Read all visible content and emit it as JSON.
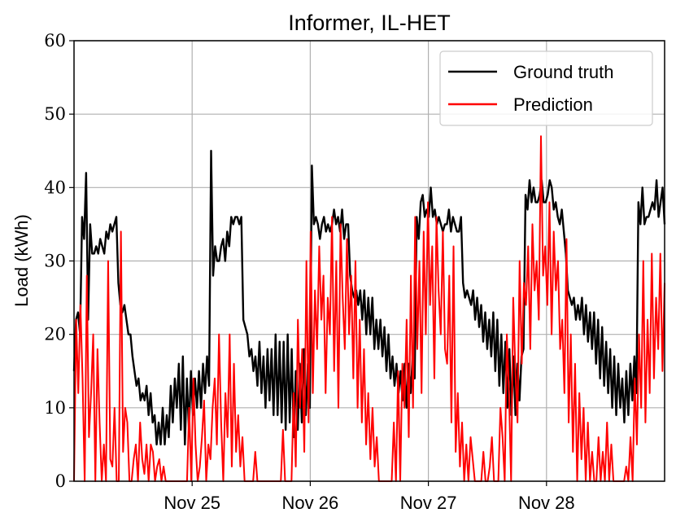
{
  "chart_data": {
    "type": "line",
    "title": "Informer, IL-HET",
    "xlabel": "",
    "ylabel": "Load (kWh)",
    "ylim": [
      0,
      60
    ],
    "yticks": [
      "0",
      "10",
      "20",
      "30",
      "40",
      "50",
      "60"
    ],
    "xticks": [
      "Nov 25",
      "Nov 26",
      "Nov 27",
      "Nov 28"
    ],
    "x_range_days": [
      "2023-11-24",
      "2023-11-29"
    ],
    "grid": true,
    "legend_position": "top-right",
    "series": [
      {
        "name": "Ground truth",
        "color": "#000000",
        "values": [
          15,
          22,
          23,
          20,
          36,
          33,
          42,
          22,
          35,
          31,
          31,
          32,
          31,
          33,
          32,
          31,
          34,
          33,
          35,
          34,
          35,
          36,
          27,
          24,
          23,
          24,
          22,
          20,
          20,
          17,
          15,
          13,
          14,
          11,
          12,
          11,
          13,
          9,
          12,
          8,
          9,
          5,
          8,
          5,
          10,
          5,
          9,
          6,
          13,
          8,
          14,
          10,
          16,
          7,
          17,
          5,
          14,
          7,
          15,
          9,
          14,
          10,
          15,
          10,
          16,
          12,
          17,
          13,
          45,
          28,
          32,
          30,
          30,
          32,
          33,
          30,
          34,
          32,
          36,
          35,
          36,
          36,
          35,
          36,
          22,
          21,
          20,
          17,
          18,
          15,
          17,
          13,
          19,
          12,
          17,
          10,
          18,
          11,
          18,
          9,
          20,
          9,
          19,
          8,
          19,
          7,
          20,
          8,
          18,
          6,
          15,
          7,
          16,
          8,
          18,
          9,
          16,
          10,
          43,
          35,
          36,
          35,
          33,
          35,
          36,
          34,
          35,
          34,
          35,
          37,
          35,
          36,
          34,
          37,
          33,
          35,
          35,
          28,
          26,
          25,
          26,
          24,
          26,
          22,
          26,
          20,
          25,
          20,
          25,
          18,
          22,
          18,
          22,
          17,
          21,
          15,
          20,
          14,
          17,
          13,
          16,
          12,
          15,
          11,
          16,
          10,
          16,
          12,
          17,
          14,
          36,
          33,
          38,
          39,
          36,
          37,
          36,
          40,
          36,
          37,
          35,
          36,
          35,
          34,
          35,
          35,
          37,
          34,
          36,
          35,
          34,
          34,
          36,
          27,
          25,
          26,
          25,
          24,
          26,
          22,
          25,
          21,
          24,
          19,
          23,
          18,
          22,
          17,
          23,
          15,
          22,
          13,
          20,
          12,
          19,
          10,
          18,
          9,
          17,
          9,
          16,
          11,
          17,
          18,
          39,
          37,
          41,
          38,
          40,
          38,
          38,
          39,
          41,
          38,
          38,
          39,
          41,
          40,
          37,
          38,
          36,
          35,
          37,
          34,
          31,
          26,
          25,
          24,
          25,
          22,
          24,
          22,
          25,
          20,
          24,
          19,
          23,
          18,
          23,
          16,
          22,
          14,
          21,
          13,
          19,
          12,
          18,
          10,
          17,
          9,
          16,
          10,
          14,
          8,
          15,
          9,
          16,
          11,
          17,
          12,
          38,
          35,
          40,
          35,
          36,
          36,
          37,
          38,
          37,
          41,
          36,
          38,
          40,
          35
        ]
      },
      {
        "name": "Prediction",
        "color": "#ff0000",
        "values": [
          0,
          22,
          12,
          24,
          14,
          0,
          28,
          6,
          12,
          20,
          0,
          18,
          8,
          0,
          5,
          0,
          30,
          3,
          2,
          10,
          0,
          0,
          34,
          4,
          10,
          8,
          0,
          0,
          3,
          5,
          0,
          8,
          3,
          1,
          5,
          0,
          5,
          4,
          0,
          2,
          3,
          0,
          2,
          0,
          0,
          0,
          0,
          0,
          0,
          0,
          0,
          0,
          0,
          0,
          10,
          0,
          14,
          5,
          0,
          2,
          6,
          11,
          0,
          5,
          3,
          10,
          14,
          5,
          20,
          8,
          0,
          12,
          6,
          20,
          2,
          16,
          4,
          9,
          2,
          6,
          0,
          0,
          0,
          0,
          0,
          4,
          0,
          0,
          0,
          0,
          0,
          0,
          0,
          0,
          0,
          0,
          0,
          0,
          7,
          0,
          0,
          0,
          0,
          12,
          2,
          22,
          10,
          18,
          4,
          30,
          8,
          34,
          12,
          26,
          18,
          32,
          22,
          28,
          12,
          25,
          20,
          36,
          15,
          30,
          10,
          35,
          25,
          18,
          33,
          20,
          28,
          14,
          30,
          10,
          22,
          8,
          18,
          5,
          12,
          3,
          10,
          2,
          6,
          0,
          0,
          0,
          0,
          0,
          0,
          0,
          8,
          0,
          15,
          0,
          16,
          10,
          22,
          6,
          28,
          10,
          36,
          18,
          30,
          12,
          34,
          20,
          38,
          24,
          32,
          14,
          36,
          26,
          20,
          34,
          18,
          16,
          28,
          8,
          32,
          4,
          12,
          2,
          8,
          0,
          5,
          0,
          6,
          3,
          0,
          0,
          0,
          0,
          4,
          0,
          0,
          2,
          6,
          0,
          0,
          0,
          10,
          6,
          0,
          20,
          12,
          0,
          25,
          15,
          8,
          30,
          16,
          27,
          24,
          32,
          18,
          35,
          26,
          30,
          22,
          47,
          28,
          32,
          24,
          38,
          20,
          34,
          26,
          30,
          18,
          22,
          12,
          33,
          8,
          20,
          4,
          16,
          0,
          12,
          3,
          10,
          0,
          8,
          0,
          4,
          0,
          0,
          6,
          0,
          4,
          0,
          8,
          0,
          5,
          0,
          0,
          0,
          0,
          0,
          0,
          2,
          0,
          6,
          0,
          14,
          5,
          20,
          10,
          30,
          8,
          22,
          12,
          31,
          14,
          25,
          18,
          31,
          15,
          27
        ]
      }
    ]
  }
}
